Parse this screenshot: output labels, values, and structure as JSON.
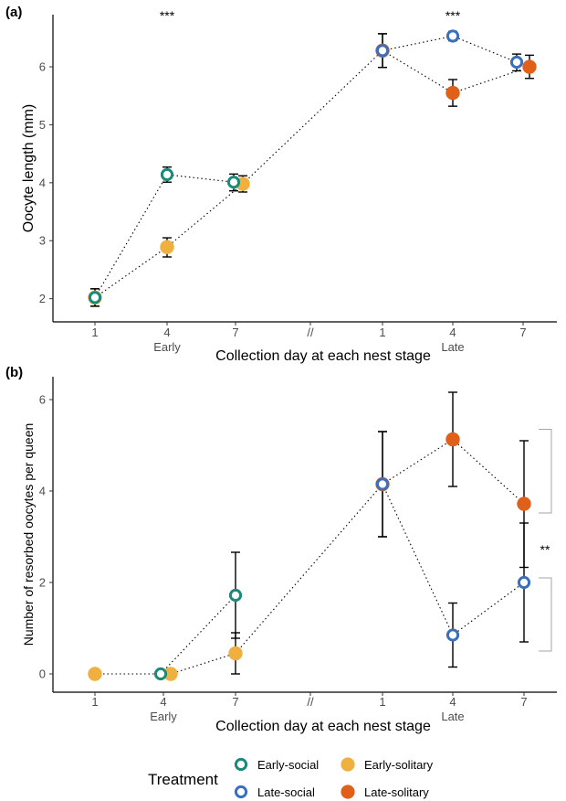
{
  "legend": {
    "title": "Treatment",
    "items": [
      {
        "key": "early_social",
        "label": "Early-social"
      },
      {
        "key": "early_solitary",
        "label": "Early-solitary"
      },
      {
        "key": "late_social",
        "label": "Late-social"
      },
      {
        "key": "late_solitary",
        "label": "Late-solitary"
      }
    ]
  },
  "styles": {
    "early_social": {
      "color": "#1a8a7a",
      "hollow": true
    },
    "early_solitary": {
      "color": "#f0b040",
      "hollow": false
    },
    "late_social": {
      "color": "#3a6fbd",
      "hollow": true
    },
    "late_solitary": {
      "color": "#e0601a",
      "hollow": false
    }
  },
  "chart_data": [
    {
      "type": "scatter",
      "panel_label": "(a)",
      "xlabel": "Collection day at each nest stage",
      "ylabel": "Oocyte length (mm)",
      "ylim": [
        1.6,
        6.9
      ],
      "yticks": [
        2,
        3,
        4,
        5,
        6
      ],
      "x_ticks": [
        "1",
        "4",
        "7",
        "//",
        "1",
        "4",
        "7"
      ],
      "x_groups": [
        {
          "label": "Early",
          "at": "4"
        },
        {
          "label": "Late",
          "at": "4"
        }
      ],
      "grid": false,
      "series": [
        {
          "key": "early_social",
          "name": "Early-social",
          "points": [
            {
              "x": 2,
              "y": 2.02,
              "lo": 1.87,
              "hi": 2.17
            },
            {
              "x": 4,
              "y": 4.14,
              "lo": 4.01,
              "hi": 4.27
            },
            {
              "x": 7,
              "y": 4.01,
              "lo": 3.86,
              "hi": 4.15
            }
          ]
        },
        {
          "key": "early_solitary",
          "name": "Early-solitary",
          "points": [
            {
              "x": 1,
              "y": 2.02,
              "lo": 1.87,
              "hi": 2.17
            },
            {
              "x": 4,
              "y": 2.89,
              "lo": 2.72,
              "hi": 3.05
            },
            {
              "x": 7,
              "y": 3.98,
              "lo": 3.84,
              "hi": 4.12
            }
          ]
        },
        {
          "key": "late_social",
          "name": "Late-social",
          "points": [
            {
              "x": 1,
              "y": 6.28,
              "lo": 5.99,
              "hi": 6.57
            },
            {
              "x": 4,
              "y": 6.53,
              "lo": 6.45,
              "hi": 6.61
            },
            {
              "x": 7,
              "y": 6.08,
              "lo": 5.93,
              "hi": 6.22
            }
          ]
        },
        {
          "key": "late_solitary",
          "name": "Late-solitary",
          "points": [
            {
              "x": 1,
              "y": 6.28,
              "lo": 5.99,
              "hi": 6.57
            },
            {
              "x": 4,
              "y": 5.55,
              "lo": 5.32,
              "hi": 5.78
            },
            {
              "x": 7,
              "y": 6.0,
              "lo": 5.8,
              "hi": 6.2
            }
          ]
        }
      ],
      "annotations": [
        {
          "text": "***",
          "x_stage": "early",
          "x_day": 4
        },
        {
          "text": "***",
          "x_stage": "late",
          "x_day": 4
        }
      ],
      "brackets": []
    },
    {
      "type": "scatter",
      "panel_label": "(b)",
      "xlabel": "Collection day at each nest stage",
      "ylabel": "Number of resorbed oocytes per queen",
      "ylim": [
        -0.4,
        6.5
      ],
      "yticks": [
        0,
        2,
        4,
        6
      ],
      "x_ticks": [
        "1",
        "4",
        "7",
        "//",
        "1",
        "4",
        "7"
      ],
      "x_groups": [
        {
          "label": "Early",
          "at": "4"
        },
        {
          "label": "Late",
          "at": "4"
        }
      ],
      "grid": false,
      "series": [
        {
          "key": "early_social",
          "name": "Early-social",
          "points": [
            {
              "x": 4,
              "y": 0.0,
              "lo": 0.0,
              "hi": 0.0
            },
            {
              "x": 7,
              "y": 1.72,
              "lo": 0.78,
              "hi": 2.66
            }
          ]
        },
        {
          "key": "early_solitary",
          "name": "Early-solitary",
          "points": [
            {
              "x": 1,
              "y": 0.0,
              "lo": 0.0,
              "hi": 0.0
            },
            {
              "x": 4,
              "y": 0.0,
              "lo": 0.0,
              "hi": 0.0
            },
            {
              "x": 7,
              "y": 0.45,
              "lo": 0.0,
              "hi": 0.9
            }
          ]
        },
        {
          "key": "late_social",
          "name": "Late-social",
          "points": [
            {
              "x": 1,
              "y": 4.15,
              "lo": 3.0,
              "hi": 5.3
            },
            {
              "x": 4,
              "y": 0.85,
              "lo": 0.15,
              "hi": 1.55
            },
            {
              "x": 7,
              "y": 2.0,
              "lo": 0.7,
              "hi": 3.3
            }
          ]
        },
        {
          "key": "late_solitary",
          "name": "Late-solitary",
          "points": [
            {
              "x": 1,
              "y": 4.15,
              "lo": 3.0,
              "hi": 5.3
            },
            {
              "x": 4,
              "y": 5.13,
              "lo": 4.1,
              "hi": 6.16
            },
            {
              "x": 7,
              "y": 3.72,
              "lo": 2.33,
              "hi": 5.1
            }
          ]
        }
      ],
      "annotations": [
        {
          "text": "**",
          "x_stage": "late",
          "x_day": 7
        }
      ],
      "brackets": [
        {
          "top": 5.35,
          "bottom": 3.52
        },
        {
          "top": 2.1,
          "bottom": 0.5
        }
      ]
    }
  ]
}
